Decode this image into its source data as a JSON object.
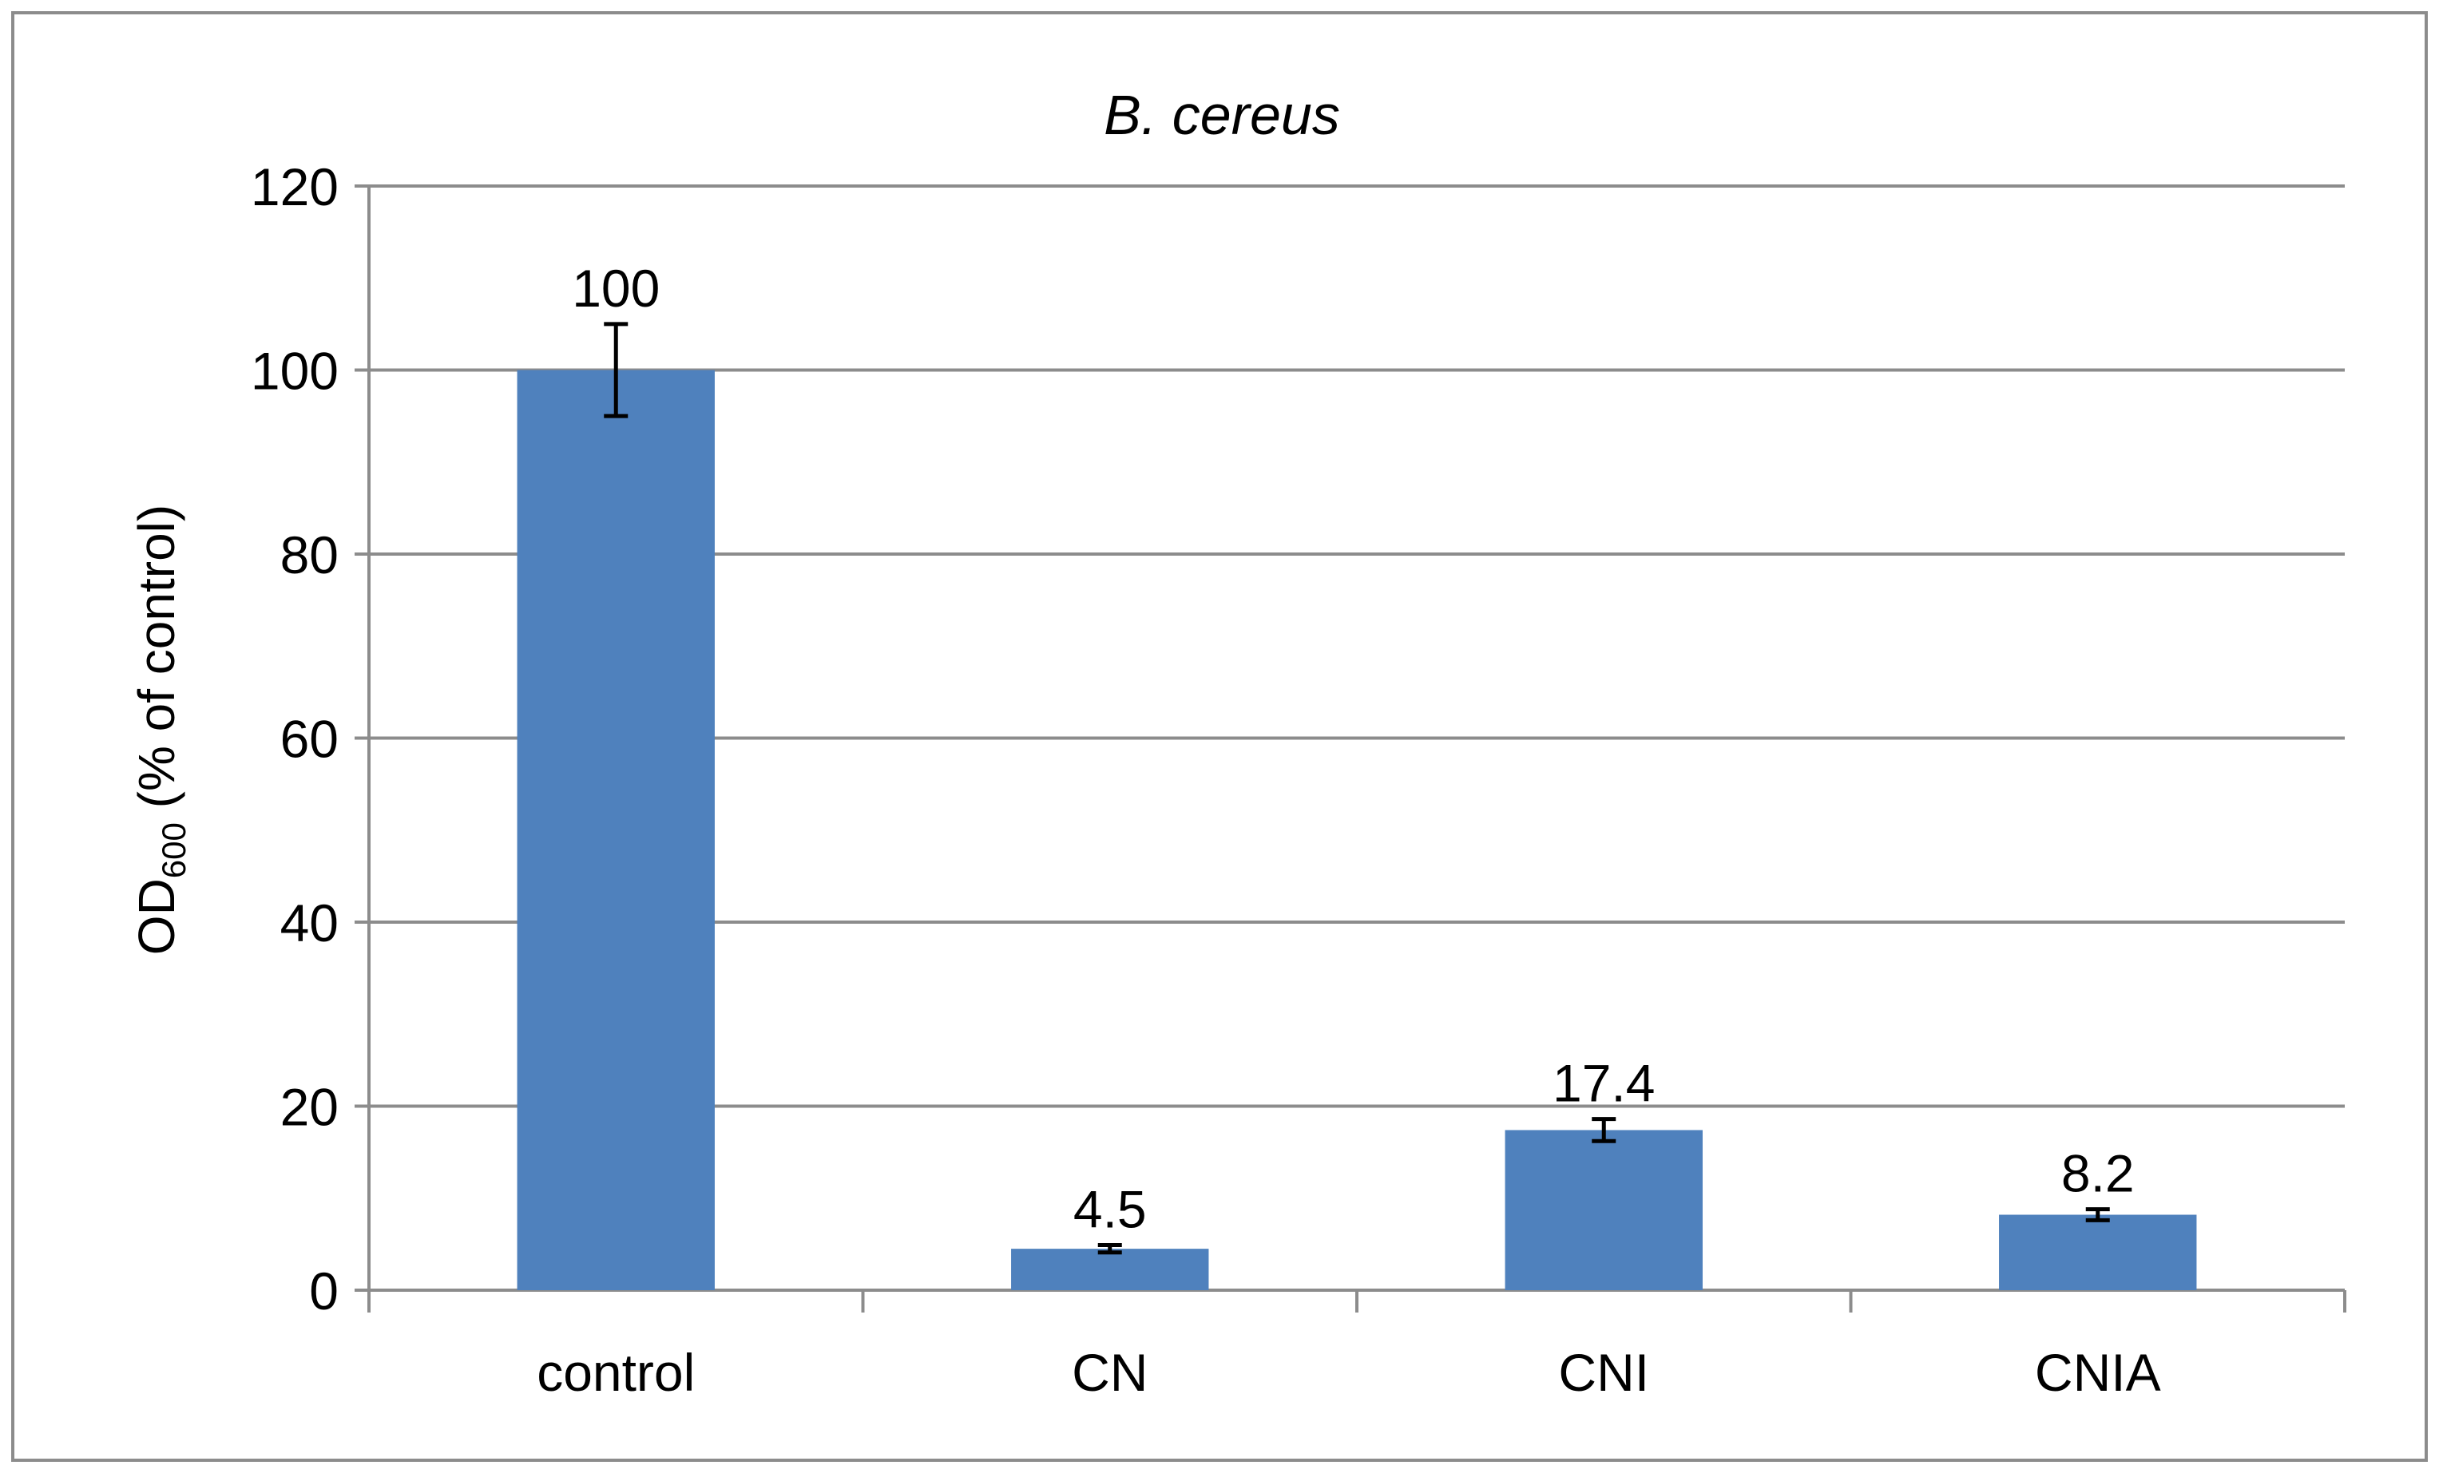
{
  "chart_data": {
    "type": "bar",
    "title": "B. cereus",
    "ylabel": {
      "main": "OD",
      "subscript": "600",
      "rest": " (% of control)"
    },
    "xlabel": "",
    "categories": [
      "control",
      "CN",
      "CNI",
      "CNIA"
    ],
    "values": [
      100,
      4.5,
      17.4,
      8.2
    ],
    "errors": [
      5,
      0.4,
      1.2,
      0.6
    ],
    "data_labels": [
      "100",
      "4.5",
      "17.4",
      "8.2"
    ],
    "ylim": [
      0,
      120
    ],
    "yticks": [
      0,
      20,
      40,
      60,
      80,
      100,
      120
    ],
    "grid": true,
    "legend": "none",
    "bar_color": "#4f81bd",
    "grid_color": "#8c8c8c",
    "error_bar_color": "#000000"
  }
}
